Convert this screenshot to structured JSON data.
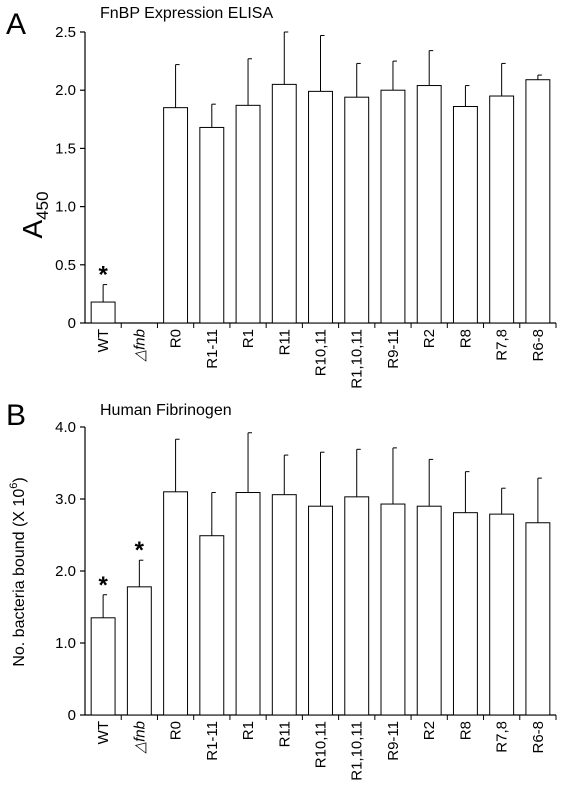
{
  "chart_data": [
    {
      "type": "bar",
      "panel_label": "A",
      "title": "FnBP Expression ELISA",
      "ylabel": {
        "text": "A",
        "sub": "450"
      },
      "categories": [
        "WT",
        "△fnb",
        "R0",
        "R1-11",
        "R1",
        "R11",
        "R10,11",
        "R1,10,11",
        "R9-11",
        "R2",
        "R8",
        "R7,8",
        "R6-8"
      ],
      "values": [
        0.18,
        0,
        1.85,
        1.68,
        1.87,
        2.05,
        1.99,
        1.94,
        2.0,
        2.04,
        1.86,
        1.95,
        2.09
      ],
      "errors": [
        0.15,
        null,
        0.37,
        0.2,
        0.4,
        0.45,
        0.48,
        0.29,
        0.25,
        0.3,
        0.18,
        0.28,
        0.04
      ],
      "significance_labels": [
        "*",
        null,
        null,
        null,
        null,
        null,
        null,
        null,
        null,
        null,
        null,
        null,
        null
      ],
      "color": "#ffffff",
      "ylim": [
        0,
        2.5
      ],
      "yticks": [
        0,
        0.5,
        {
          "value": 1,
          "label": "1.0"
        },
        1.5,
        {
          "value": 2,
          "label": "2.0"
        },
        2.5
      ]
    },
    {
      "type": "bar",
      "panel_label": "B",
      "title": "Human Fibrinogen",
      "ylabel": {
        "text": "No. bacteria bound (X 10",
        "sup": "6",
        "end": ")"
      },
      "categories": [
        "WT",
        "△fnb",
        "R0",
        "R1-11",
        "R1",
        "R11",
        "R10,11",
        "R1,10,11",
        "R9-11",
        "R2",
        "R8",
        "R7,8",
        "R6-8"
      ],
      "values": [
        1.35,
        1.78,
        3.1,
        2.49,
        3.09,
        3.06,
        2.9,
        3.03,
        2.93,
        2.9,
        2.81,
        2.79,
        2.67
      ],
      "errors": [
        0.32,
        0.37,
        0.73,
        0.6,
        0.83,
        0.55,
        0.75,
        0.66,
        0.78,
        0.65,
        0.57,
        0.36,
        0.62
      ],
      "significance_labels": [
        "*",
        "*",
        null,
        null,
        null,
        null,
        null,
        null,
        null,
        null,
        null,
        null,
        null
      ],
      "color": "#ffffff",
      "ylim": [
        0,
        4
      ],
      "yticks": [
        0,
        {
          "value": 1,
          "label": "1.0"
        },
        {
          "value": 2,
          "label": "2.0"
        },
        {
          "value": 3,
          "label": "3.0"
        },
        {
          "value": 4,
          "label": "4.0"
        }
      ]
    }
  ]
}
